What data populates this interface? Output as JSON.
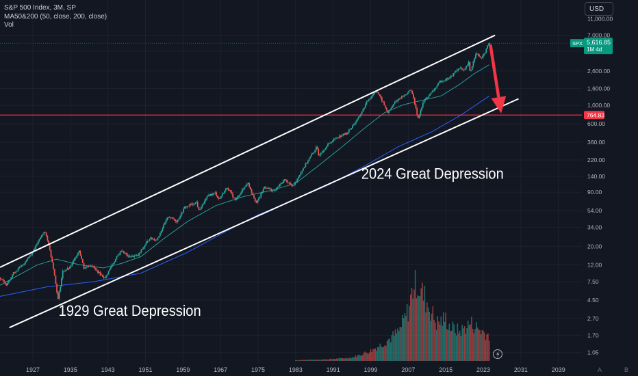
{
  "legend": {
    "title": "S&P 500 Index, 3M, SP",
    "indicator": "MA50&200 (50, close, 200, close)",
    "volume": "Vol"
  },
  "currency_button": "USD",
  "price_badge": {
    "symbol": "SPX",
    "value": "5,616.85",
    "countdown": "1M 4d"
  },
  "support_badge": "764.83",
  "bottom_icons": [
    "A",
    "B"
  ],
  "colors": {
    "background": "#131722",
    "up": "#26a69a",
    "down": "#ef5350",
    "ma50": "#2a9d9a",
    "ma200": "#2962ff",
    "channel": "#ffffff",
    "support_line": "#f23645",
    "arrow": "#f23645",
    "badge_spx": "#089981"
  },
  "chart_data": {
    "type": "candlestick",
    "title": "S&P 500 Index, 3M, SP",
    "x_ticks": [
      "1927",
      "1935",
      "1943",
      "1951",
      "1959",
      "1967",
      "1975",
      "1983",
      "1991",
      "1999",
      "2007",
      "2015",
      "2023",
      "2031",
      "2039"
    ],
    "y_scale": "log",
    "y_ticks": [
      "7,000.00",
      "4,500.00",
      "2,600.00",
      "1,600.00",
      "1,000.00",
      "600.00",
      "360.00",
      "220.00",
      "140.00",
      "90.00",
      "54.00",
      "34.00",
      "20.00",
      "12.00",
      "7.50",
      "4.50",
      "2.70",
      "1.70",
      "1.05"
    ],
    "y_tick_values": [
      7000,
      4500,
      2600,
      1600,
      1000,
      600,
      360,
      220,
      140,
      90,
      54,
      34,
      20,
      12,
      7.5,
      4.5,
      2.7,
      1.7,
      1.05
    ],
    "y_top_label": "11,000.00",
    "ylim": [
      0.95,
      14000
    ],
    "xlim": [
      1920,
      2044
    ],
    "last_price": 5616.85,
    "support_level": 764.83,
    "price_anchors": [
      [
        1920.0,
        8.3
      ],
      [
        1921.5,
        7.0
      ],
      [
        1923.0,
        9.5
      ],
      [
        1925.0,
        12.0
      ],
      [
        1927.0,
        17
      ],
      [
        1928.5,
        24
      ],
      [
        1929.6,
        31
      ],
      [
        1930.5,
        21
      ],
      [
        1931.5,
        11
      ],
      [
        1932.5,
        4.6
      ],
      [
        1933.5,
        10
      ],
      [
        1935.0,
        11
      ],
      [
        1937.0,
        18
      ],
      [
        1938.0,
        11
      ],
      [
        1939.5,
        12
      ],
      [
        1941.5,
        9.2
      ],
      [
        1942.5,
        8.3
      ],
      [
        1944.0,
        12
      ],
      [
        1946.0,
        18
      ],
      [
        1947.5,
        15
      ],
      [
        1949.5,
        15.5
      ],
      [
        1952.0,
        25
      ],
      [
        1953.5,
        24
      ],
      [
        1956.0,
        46
      ],
      [
        1957.8,
        40
      ],
      [
        1959.5,
        59
      ],
      [
        1962.0,
        68
      ],
      [
        1962.5,
        54
      ],
      [
        1964.5,
        82
      ],
      [
        1966.0,
        88
      ],
      [
        1966.8,
        74
      ],
      [
        1968.5,
        103
      ],
      [
        1970.3,
        72
      ],
      [
        1972.9,
        118
      ],
      [
        1974.8,
        66
      ],
      [
        1976.5,
        105
      ],
      [
        1978.5,
        92
      ],
      [
        1980.8,
        128
      ],
      [
        1982.5,
        105
      ],
      [
        1985.0,
        185
      ],
      [
        1987.6,
        315
      ],
      [
        1988.0,
        250
      ],
      [
        1990.4,
        355
      ],
      [
        1992.0,
        415
      ],
      [
        1994.0,
        460
      ],
      [
        1996.5,
        700
      ],
      [
        1998.5,
        1150
      ],
      [
        2000.3,
        1520
      ],
      [
        2001.5,
        1150
      ],
      [
        2002.8,
        810
      ],
      [
        2004.5,
        1130
      ],
      [
        2006.5,
        1350
      ],
      [
        2007.8,
        1550
      ],
      [
        2009.2,
        700
      ],
      [
        2010.5,
        1150
      ],
      [
        2012.0,
        1400
      ],
      [
        2014.0,
        1950
      ],
      [
        2016.0,
        2150
      ],
      [
        2018.0,
        2850
      ],
      [
        2019.0,
        2600
      ],
      [
        2020.0,
        3250
      ],
      [
        2020.3,
        2450
      ],
      [
        2021.5,
        4250
      ],
      [
        2022.8,
        3650
      ],
      [
        2023.5,
        4400
      ],
      [
        2024.3,
        5616.85
      ]
    ],
    "ma50_anchors": [
      [
        1920.0,
        6.8
      ],
      [
        1928.0,
        12
      ],
      [
        1932.0,
        14
      ],
      [
        1937.0,
        12
      ],
      [
        1942.0,
        11
      ],
      [
        1946.0,
        12.5
      ],
      [
        1950.0,
        15
      ],
      [
        1955.0,
        25
      ],
      [
        1960.0,
        40
      ],
      [
        1966.0,
        62
      ],
      [
        1972.0,
        80
      ],
      [
        1978.0,
        95
      ],
      [
        1983.0,
        115
      ],
      [
        1988.0,
        190
      ],
      [
        1993.0,
        320
      ],
      [
        1998.0,
        550
      ],
      [
        2002.0,
        820
      ],
      [
        2006.0,
        1020
      ],
      [
        2010.0,
        1150
      ],
      [
        2014.0,
        1300
      ],
      [
        2018.0,
        1800
      ],
      [
        2021.0,
        2400
      ],
      [
        2024.3,
        3100
      ]
    ],
    "ma200_anchors": [
      [
        1920.0,
        5.0
      ],
      [
        1930.0,
        6.5
      ],
      [
        1940.0,
        7.5
      ],
      [
        1950.0,
        9.5
      ],
      [
        1960.0,
        17
      ],
      [
        1968.0,
        30
      ],
      [
        1975.0,
        48
      ],
      [
        1982.0,
        70
      ],
      [
        1990.0,
        110
      ],
      [
        1998.0,
        190
      ],
      [
        2005.0,
        320
      ],
      [
        2012.0,
        480
      ],
      [
        2018.0,
        750
      ],
      [
        2024.3,
        1300
      ]
    ],
    "volume_profile": [
      [
        1983,
        0.01
      ],
      [
        1990,
        0.02
      ],
      [
        1995,
        0.04
      ],
      [
        1999,
        0.12
      ],
      [
        2002,
        0.22
      ],
      [
        2005,
        0.35
      ],
      [
        2007,
        0.6
      ],
      [
        2008.5,
        1.0
      ],
      [
        2009.5,
        0.85
      ],
      [
        2011,
        0.7
      ],
      [
        2013,
        0.45
      ],
      [
        2015,
        0.5
      ],
      [
        2016,
        0.4
      ],
      [
        2018,
        0.35
      ],
      [
        2020.3,
        0.45
      ],
      [
        2022,
        0.38
      ],
      [
        2024.3,
        0.3
      ]
    ],
    "channel": {
      "upper": [
        [
          1920.0,
          11.2
        ],
        [
          2025.5,
          7000
        ]
      ],
      "lower": [
        [
          1922.0,
          2.1
        ],
        [
          2030.5,
          1200
        ]
      ]
    },
    "arrow": {
      "from": [
        2024.5,
        5400
      ],
      "to": [
        2026.8,
        800
      ]
    },
    "annotations": [
      {
        "text": "1929 Great Depression",
        "x": 1932.5,
        "y": 2.9
      },
      {
        "text": "2024 Great Depression",
        "x": 1997.0,
        "y": 130
      }
    ]
  }
}
